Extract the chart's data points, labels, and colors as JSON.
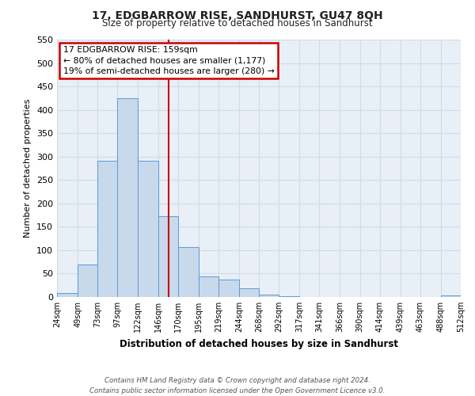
{
  "title": "17, EDGBARROW RISE, SANDHURST, GU47 8QH",
  "subtitle": "Size of property relative to detached houses in Sandhurst",
  "xlabel": "Distribution of detached houses by size in Sandhurst",
  "ylabel": "Number of detached properties",
  "bar_edges": [
    24,
    49,
    73,
    97,
    122,
    146,
    170,
    195,
    219,
    244,
    268,
    292,
    317,
    341,
    366,
    390,
    414,
    439,
    463,
    488,
    512
  ],
  "bar_heights": [
    8,
    70,
    291,
    425,
    291,
    173,
    106,
    44,
    38,
    18,
    5,
    1,
    0,
    0,
    0,
    0,
    0,
    0,
    0,
    3
  ],
  "bar_color": "#c8d9ec",
  "bar_edgecolor": "#5b9bd5",
  "vline_x": 159,
  "vline_color": "#cc0000",
  "annotation_line1": "17 EDGBARROW RISE: 159sqm",
  "annotation_line2": "← 80% of detached houses are smaller (1,177)",
  "annotation_line3": "19% of semi-detached houses are larger (280) →",
  "annotation_box_edgecolor": "#cc0000",
  "annotation_box_facecolor": "#ffffff",
  "xlim_left": 24,
  "xlim_right": 512,
  "ylim_top": 550,
  "ylim_bottom": 0,
  "yticks": [
    0,
    50,
    100,
    150,
    200,
    250,
    300,
    350,
    400,
    450,
    500,
    550
  ],
  "xtick_labels": [
    "24sqm",
    "49sqm",
    "73sqm",
    "97sqm",
    "122sqm",
    "146sqm",
    "170sqm",
    "195sqm",
    "219sqm",
    "244sqm",
    "268sqm",
    "292sqm",
    "317sqm",
    "341sqm",
    "366sqm",
    "390sqm",
    "414sqm",
    "439sqm",
    "463sqm",
    "488sqm",
    "512sqm"
  ],
  "xtick_positions": [
    24,
    49,
    73,
    97,
    122,
    146,
    170,
    195,
    219,
    244,
    268,
    292,
    317,
    341,
    366,
    390,
    414,
    439,
    463,
    488,
    512
  ],
  "footer_line1": "Contains HM Land Registry data © Crown copyright and database right 2024.",
  "footer_line2": "Contains public sector information licensed under the Open Government Licence v3.0.",
  "grid_color": "#d0dce8",
  "bg_color": "#ffffff",
  "plot_bg_color": "#e8eff6"
}
